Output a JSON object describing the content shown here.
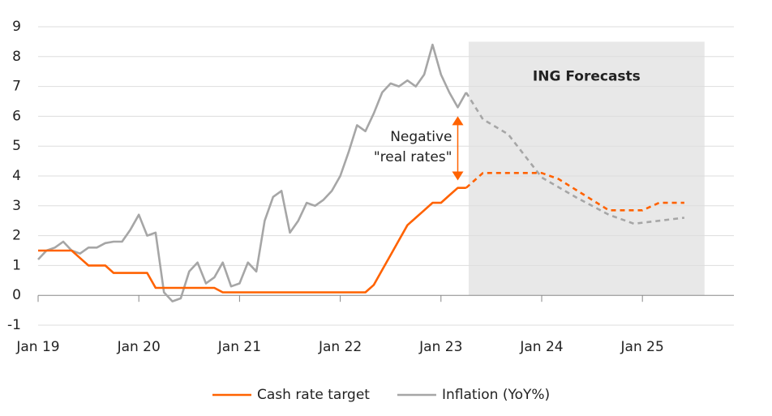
{
  "chart_data": {
    "type": "line",
    "xlim": [
      0,
      82.9
    ],
    "xticks": [
      {
        "value": 0,
        "label": "Jan 19"
      },
      {
        "value": 12,
        "label": "Jan 20"
      },
      {
        "value": 24,
        "label": "Jan 21"
      },
      {
        "value": 36,
        "label": "Jan 22"
      },
      {
        "value": 48,
        "label": "Jan 23"
      },
      {
        "value": 60,
        "label": "Jan 24"
      },
      {
        "value": 72,
        "label": "Jan 25"
      }
    ],
    "ylim": [
      -1,
      9
    ],
    "yticks": [
      -1,
      0,
      1,
      2,
      3,
      4,
      5,
      6,
      7,
      8,
      9
    ],
    "grid": true,
    "forecast_from": 51,
    "forecast_region": {
      "label": "ING Forecasts",
      "x": [
        51.3,
        79.4
      ],
      "top": 8.5,
      "color": "#e8e8e8"
    },
    "annotation": {
      "lines": [
        "Negative",
        "\"real rates\""
      ],
      "x": 50,
      "y": [
        6.0,
        3.85
      ],
      "color": "#ff6200"
    },
    "legend": "bottom",
    "series": [
      {
        "name": "Cash rate target",
        "color": "#ff6200",
        "x": [
          0,
          1,
          2,
          3,
          4,
          5,
          6,
          7,
          8,
          9,
          10,
          11,
          12,
          13,
          14,
          15,
          16,
          17,
          18,
          19,
          20,
          21,
          22,
          23,
          24,
          25,
          26,
          27,
          28,
          29,
          30,
          31,
          32,
          33,
          34,
          35,
          36,
          37,
          38,
          39,
          40,
          41,
          42,
          43,
          44,
          45,
          46,
          47,
          48,
          49,
          50,
          51,
          53,
          60,
          62,
          68,
          72,
          74,
          77
        ],
        "values": [
          1.5,
          1.5,
          1.5,
          1.5,
          1.5,
          1.25,
          1.0,
          1.0,
          1.0,
          0.75,
          0.75,
          0.75,
          0.75,
          0.75,
          0.25,
          0.25,
          0.25,
          0.25,
          0.25,
          0.25,
          0.25,
          0.25,
          0.1,
          0.1,
          0.1,
          0.1,
          0.1,
          0.1,
          0.1,
          0.1,
          0.1,
          0.1,
          0.1,
          0.1,
          0.1,
          0.1,
          0.1,
          0.1,
          0.1,
          0.1,
          0.35,
          0.85,
          1.35,
          1.85,
          2.35,
          2.6,
          2.85,
          3.1,
          3.1,
          3.35,
          3.6,
          3.6,
          4.1,
          4.1,
          3.9,
          2.85,
          2.85,
          3.1,
          3.1
        ]
      },
      {
        "name": "Inflation (YoY%)",
        "color": "#a6a6a6",
        "x": [
          0,
          1,
          2,
          3,
          4,
          5,
          6,
          7,
          8,
          9,
          10,
          11,
          12,
          13,
          14,
          15,
          16,
          17,
          18,
          19,
          20,
          21,
          22,
          23,
          24,
          25,
          26,
          27,
          28,
          29,
          30,
          31,
          32,
          33,
          34,
          35,
          36,
          37,
          38,
          39,
          40,
          41,
          42,
          43,
          44,
          45,
          46,
          47,
          48,
          49,
          50,
          51,
          53,
          56,
          60,
          64,
          68,
          71,
          77
        ],
        "values": [
          1.2,
          1.5,
          1.6,
          1.8,
          1.5,
          1.4,
          1.6,
          1.6,
          1.75,
          1.8,
          1.8,
          2.2,
          2.7,
          2.0,
          2.1,
          0.1,
          -0.2,
          -0.1,
          0.8,
          1.1,
          0.4,
          0.6,
          1.1,
          0.3,
          0.4,
          1.1,
          0.8,
          2.5,
          3.3,
          3.5,
          2.1,
          2.5,
          3.1,
          3.0,
          3.2,
          3.5,
          4.0,
          4.8,
          5.7,
          5.5,
          6.1,
          6.8,
          7.1,
          7.0,
          7.2,
          7.0,
          7.4,
          8.4,
          7.4,
          6.8,
          6.3,
          6.8,
          5.9,
          5.4,
          3.95,
          3.3,
          2.7,
          2.4,
          2.6
        ]
      }
    ]
  }
}
